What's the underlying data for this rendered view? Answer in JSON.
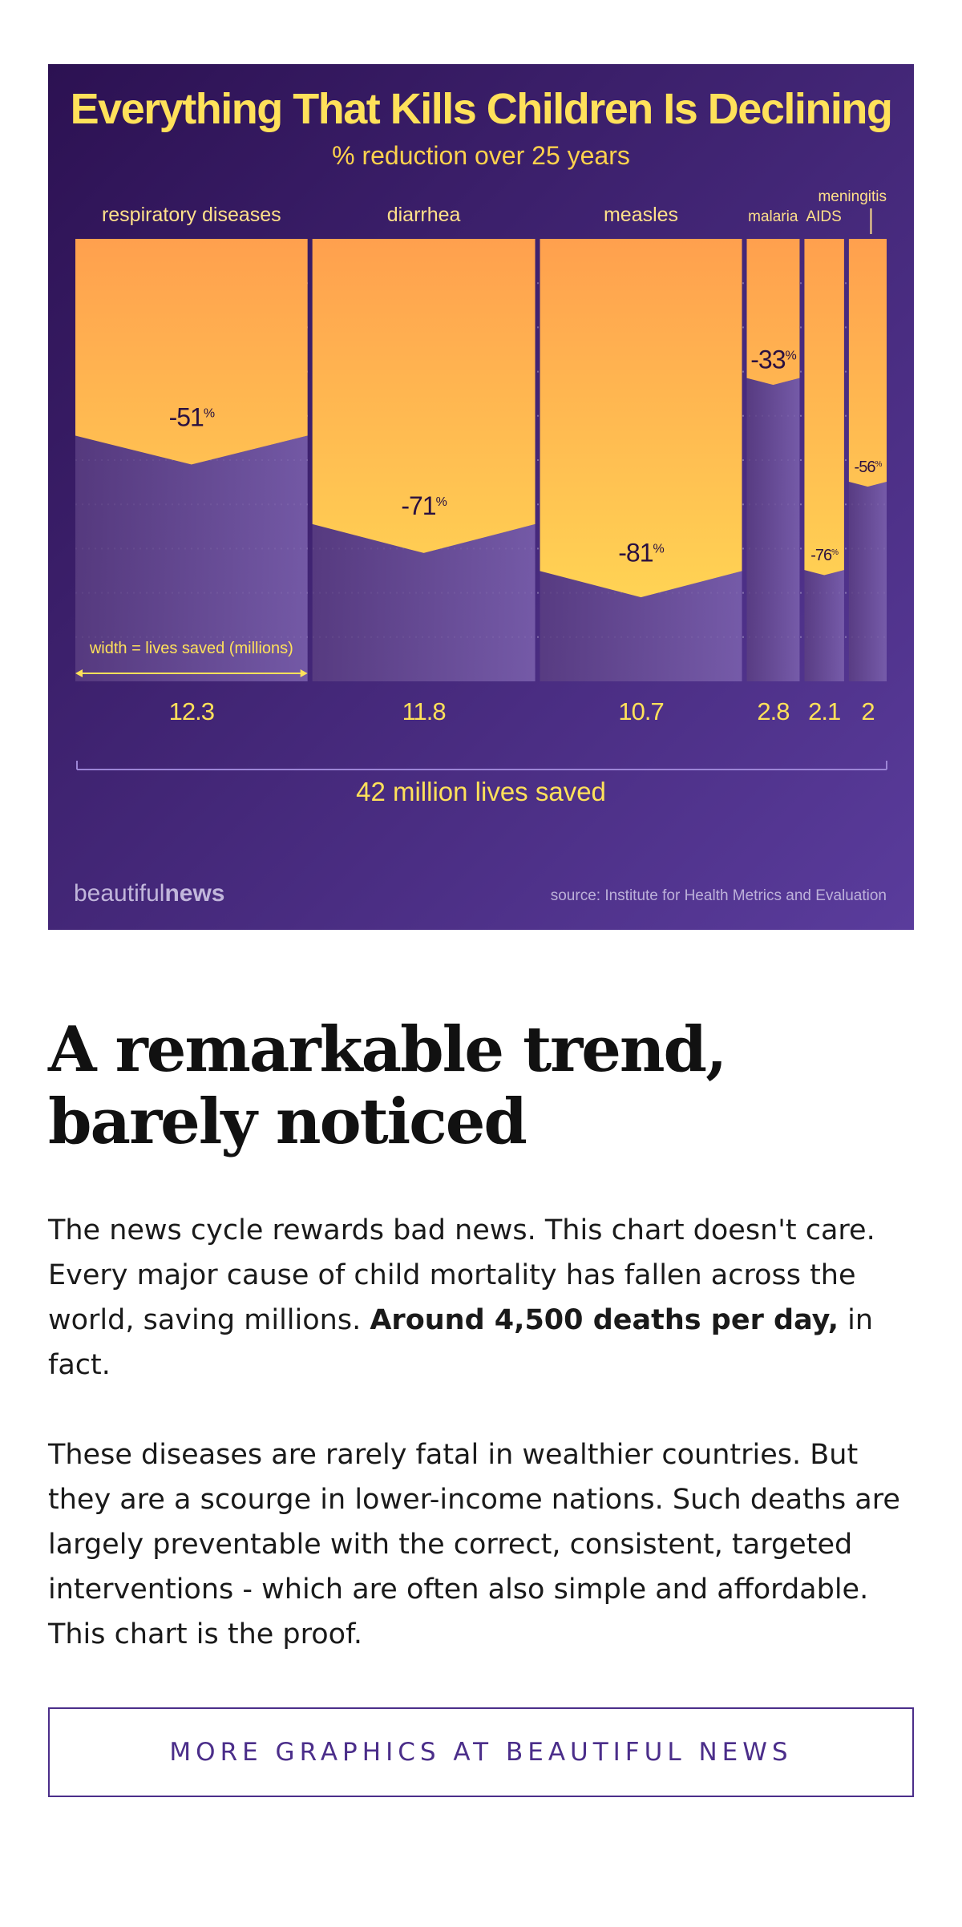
{
  "chart_data": {
    "type": "bar",
    "variant": "variable-width-bar",
    "title": "Everything That Kills Children Is Declining",
    "subtitle": "% reduction over 25 years",
    "width_legend": "width = lives saved (millions)",
    "total_label": "42 million lives saved",
    "categories": [
      "respiratory diseases",
      "diarrhea",
      "measles",
      "malaria",
      "AIDS",
      "meningitis"
    ],
    "reductions_pct": [
      -51,
      -71,
      -81,
      -33,
      -76,
      -56
    ],
    "reduction_unit": "%",
    "lives_saved_millions": [
      12.3,
      11.8,
      10.7,
      2.8,
      2.1,
      2
    ],
    "lives_saved_labels": [
      "12.3",
      "11.8",
      "10.7",
      "2.8",
      "2.1",
      "2"
    ],
    "ylim": [
      0,
      100
    ],
    "grid": true,
    "colors": {
      "background_dark": "#2c1152",
      "background_light": "#5a3c9c",
      "bar_top": "#ffa04e",
      "bar_bottom": "#ffdf55",
      "remaining": "#7a5ea8",
      "title": "#ffe15a"
    }
  },
  "brand": {
    "light": "beautiful",
    "bold": "news"
  },
  "source": "source: Institute for Health Metrics and Evaluation",
  "article": {
    "headline": "A remarkable trend, barely noticed",
    "para1_start": "The news cycle rewards bad news. This chart doesn't care. Every major cause of child mortality has fallen across the world, saving millions. ",
    "para1_bold": "Around 4,500 deaths per day,",
    "para1_end": " in fact.",
    "para2": "These diseases are rarely fatal in wealthier countries. But they are a scourge in lower-income nations. Such deaths are largely preventable with the correct, consistent, targeted interventions - which are often also simple and affordable. This chart is the proof."
  },
  "cta_label": "MORE GRAPHICS AT BEAUTIFUL NEWS"
}
